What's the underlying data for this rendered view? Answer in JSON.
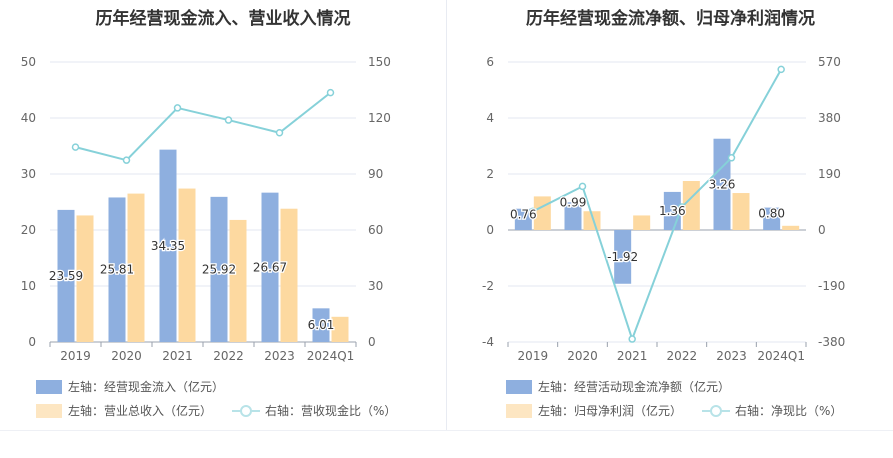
{
  "chart_data": [
    {
      "type": "bar",
      "title": "历年经营现金流入、营业收入情况",
      "categories": [
        "2019",
        "2020",
        "2021",
        "2022",
        "2023",
        "2024Q1"
      ],
      "left_axis": {
        "ticks": [
          "0",
          "10",
          "20",
          "30",
          "40",
          "50"
        ],
        "ylim": [
          0,
          50
        ]
      },
      "right_axis": {
        "ticks": [
          "0",
          "30",
          "60",
          "90",
          "120",
          "150"
        ],
        "ylim": [
          0,
          150
        ]
      },
      "series": [
        {
          "name": "左轴：经营现金流入（亿元）",
          "type": "bar",
          "axis": "left",
          "color": "#8eafdf",
          "values": [
            23.59,
            25.81,
            34.35,
            25.92,
            26.67,
            6.01
          ],
          "labels": [
            "23.59",
            "25.81",
            "34.35",
            "25.92",
            "26.67",
            "6.01"
          ]
        },
        {
          "name": "左轴：营业总收入（亿元）",
          "type": "bar",
          "axis": "left",
          "color": "#fdd9a0",
          "values": [
            22.6,
            26.5,
            27.4,
            21.8,
            23.8,
            4.5
          ]
        },
        {
          "name": "右轴：营收现金比（%）",
          "type": "line",
          "axis": "right",
          "color": "#86d1d9",
          "values": [
            104.4,
            97.4,
            125.4,
            118.9,
            112.1,
            133.6
          ]
        }
      ],
      "grid": true
    },
    {
      "type": "bar",
      "title": "历年经营现金流净额、归母净利润情况",
      "categories": [
        "2019",
        "2020",
        "2021",
        "2022",
        "2023",
        "2024Q1"
      ],
      "left_axis": {
        "ticks": [
          "-4",
          "-2",
          "0",
          "2",
          "4",
          "6"
        ],
        "ylim": [
          -4,
          6
        ]
      },
      "right_axis": {
        "ticks": [
          "-380",
          "-190",
          "0",
          "190",
          "380",
          "570"
        ],
        "ylim": [
          -380,
          570
        ]
      },
      "series": [
        {
          "name": "左轴：经营活动现金流净额（亿元）",
          "type": "bar",
          "axis": "left",
          "color": "#8eafdf",
          "values": [
            0.76,
            0.99,
            -1.92,
            1.36,
            3.26,
            0.8
          ],
          "labels": [
            "0.76",
            "0.99",
            "-1.92",
            "1.36",
            "3.26",
            "0.80"
          ]
        },
        {
          "name": "左轴：归母净利润（亿元）",
          "type": "bar",
          "axis": "left",
          "color": "#fdd9a0",
          "values": [
            1.2,
            0.67,
            0.52,
            1.75,
            1.32,
            0.15
          ]
        },
        {
          "name": "右轴：净现比（%）",
          "type": "line",
          "axis": "right",
          "color": "#86d1d9",
          "values": [
            63,
            148,
            -370,
            78,
            245,
            545
          ]
        }
      ],
      "grid": true
    }
  ]
}
